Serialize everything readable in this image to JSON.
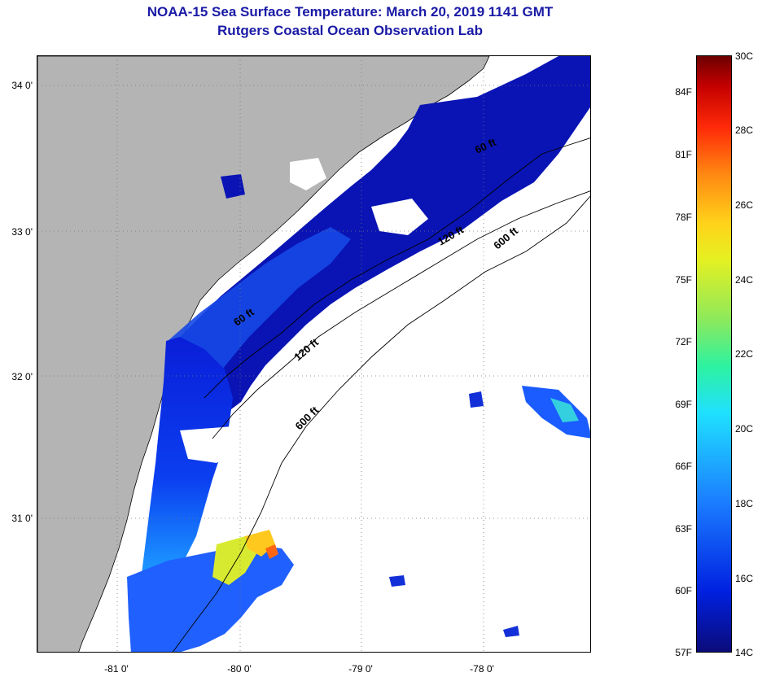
{
  "title": "NOAA-15 Sea Surface Temperature:  March 20, 2019 1141 GMT",
  "subtitle": "Rutgers Coastal Ocean Observation Lab",
  "map": {
    "lat_labels": [
      "34 0'",
      "33 0'",
      "32 0'",
      "31 0'"
    ],
    "lon_labels": [
      "-81 0'",
      "-80 0'",
      "-79 0'",
      "-78 0'"
    ],
    "contour_labels": [
      "60 ft",
      "120 ft",
      "600 ft",
      "60 ft",
      "120 ft",
      "600 ft"
    ],
    "land_color": "#b4b4b4",
    "cloud_color": "#ffffff"
  },
  "colorbar": {
    "fahrenheit": [
      "84F",
      "81F",
      "78F",
      "75F",
      "72F",
      "69F",
      "66F",
      "63F",
      "60F",
      "57F"
    ],
    "celsius": [
      "30C",
      "28C",
      "26C",
      "24C",
      "22C",
      "20C",
      "18C",
      "16C",
      "14C"
    ],
    "colors": [
      "#0b0b7a",
      "#0020e0",
      "#1b7cff",
      "#1fe0ff",
      "#2ef2a0",
      "#8fe95a",
      "#e6f020",
      "#ffd21a",
      "#ff8a12",
      "#ff2a08",
      "#c40000",
      "#6e0000"
    ]
  }
}
